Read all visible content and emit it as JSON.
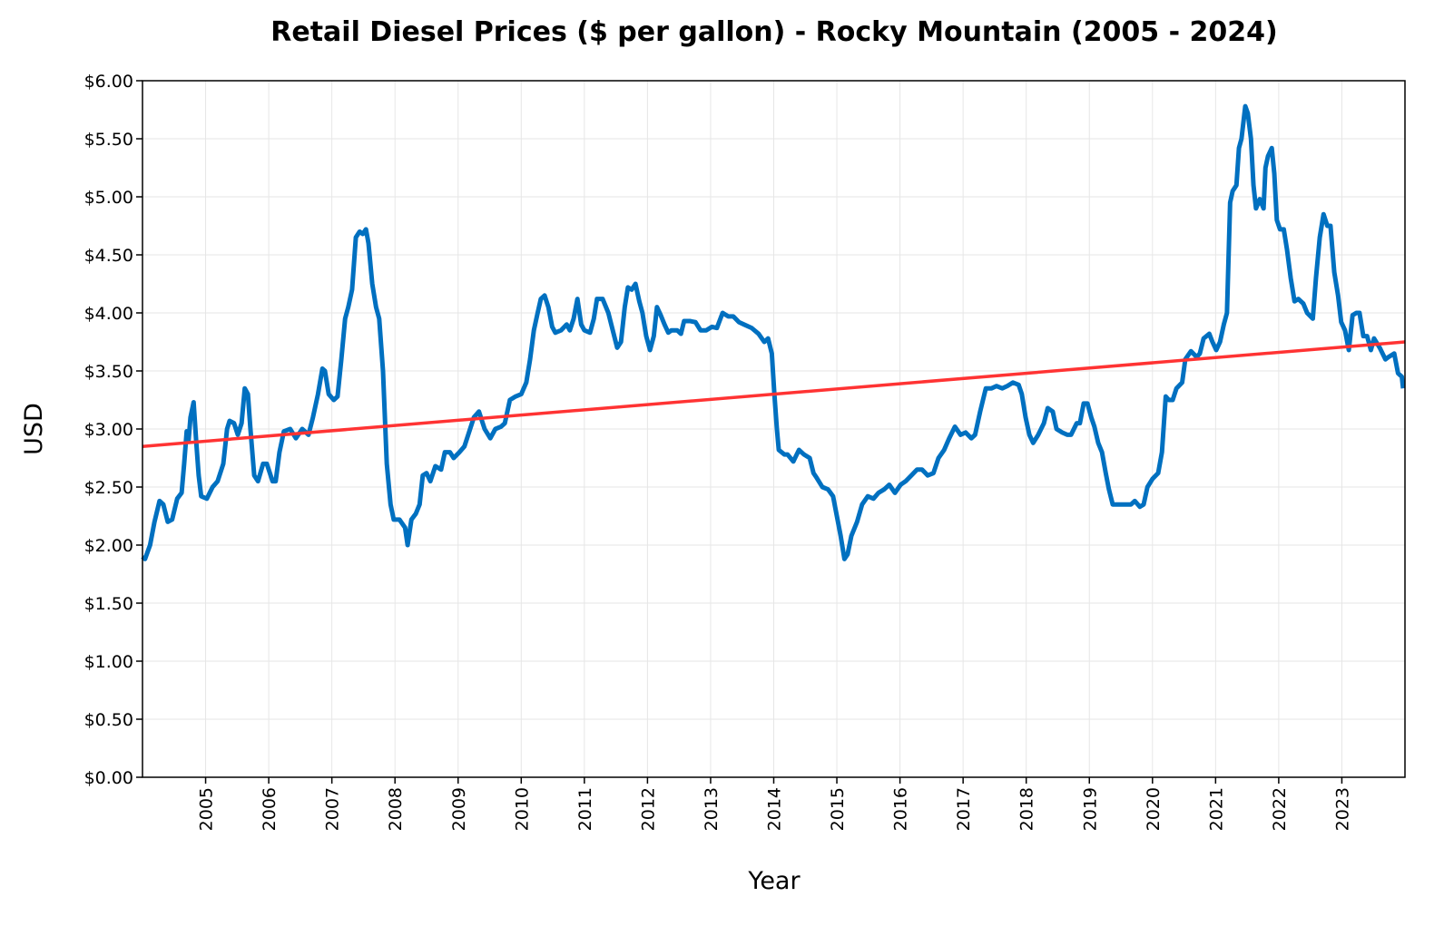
{
  "chart_data": {
    "type": "line",
    "title": "Retail Diesel Prices ($ per gallon) - Rocky Mountain (2005 - 2024)",
    "xlabel": "Year",
    "ylabel": "USD",
    "xlim": [
      2004,
      2024
    ],
    "xticks": [
      2005,
      2006,
      2007,
      2008,
      2009,
      2010,
      2011,
      2012,
      2013,
      2014,
      2015,
      2016,
      2017,
      2018,
      2019,
      2020,
      2021,
      2022,
      2023
    ],
    "ylim": [
      0,
      6
    ],
    "yticks": [
      {
        "value": 0,
        "label": "$0.00"
      },
      {
        "value": 0.5,
        "label": "$0.50"
      },
      {
        "value": 1,
        "label": "$1.00"
      },
      {
        "value": 1.5,
        "label": "$1.50"
      },
      {
        "value": 2,
        "label": "$2.00"
      },
      {
        "value": 2.5,
        "label": "$2.50"
      },
      {
        "value": 3,
        "label": "$3.00"
      },
      {
        "value": 3.5,
        "label": "$3.50"
      },
      {
        "value": 4,
        "label": "$4.00"
      },
      {
        "value": 4.5,
        "label": "$4.50"
      },
      {
        "value": 5,
        "label": "$5.00"
      },
      {
        "value": 5.5,
        "label": "$5.50"
      },
      {
        "value": 6,
        "label": "$6.00"
      }
    ],
    "grid": true,
    "series": [
      {
        "color": "#0070c0",
        "x": [
          2004.0,
          2004.04,
          2004.12,
          2004.19,
          2004.27,
          2004.33,
          2004.4,
          2004.47,
          2004.55,
          2004.62,
          2004.66,
          2004.7,
          2004.73,
          2004.76,
          2004.81,
          2004.85,
          2004.89,
          2004.93,
          2005.02,
          2005.11,
          2005.19,
          2005.28,
          2005.34,
          2005.38,
          2005.45,
          2005.51,
          2005.57,
          2005.62,
          2005.67,
          2005.71,
          2005.77,
          2005.83,
          2005.91,
          2005.97,
          2006.06,
          2006.11,
          2006.17,
          2006.24,
          2006.34,
          2006.43,
          2006.53,
          2006.63,
          2006.7,
          2006.78,
          2006.85,
          2006.89,
          2006.95,
          2007.03,
          2007.09,
          2007.15,
          2007.21,
          2007.26,
          2007.32,
          2007.38,
          2007.44,
          2007.49,
          2007.54,
          2007.58,
          2007.64,
          2007.7,
          2007.75,
          2007.81,
          2007.87,
          2007.93,
          2007.98,
          2008.07,
          2008.16,
          2008.2,
          2008.26,
          2008.33,
          2008.39,
          2008.44,
          2008.5,
          2008.56,
          2008.64,
          2008.73,
          2008.79,
          2008.87,
          2008.93,
          2009.02,
          2009.1,
          2009.16,
          2009.25,
          2009.33,
          2009.42,
          2009.51,
          2009.59,
          2009.68,
          2009.74,
          2009.82,
          2009.91,
          2010.0,
          2010.08,
          2010.14,
          2010.2,
          2010.26,
          2010.31,
          2010.37,
          2010.43,
          2010.49,
          2010.54,
          2010.63,
          2010.72,
          2010.77,
          2010.83,
          2010.89,
          2010.95,
          2011.0,
          2011.09,
          2011.15,
          2011.2,
          2011.29,
          2011.38,
          2011.45,
          2011.52,
          2011.58,
          2011.64,
          2011.69,
          2011.75,
          2011.81,
          2011.87,
          2011.92,
          2011.98,
          2012.04,
          2012.1,
          2012.15,
          2012.21,
          2012.27,
          2012.33,
          2012.38,
          2012.47,
          2012.53,
          2012.58,
          2012.67,
          2012.76,
          2012.84,
          2012.93,
          2013.02,
          2013.1,
          2013.19,
          2013.28,
          2013.36,
          2013.45,
          2013.53,
          2013.65,
          2013.76,
          2013.85,
          2013.91,
          2013.97,
          2014.01,
          2014.05,
          2014.08,
          2014.17,
          2014.22,
          2014.31,
          2014.4,
          2014.48,
          2014.57,
          2014.63,
          2014.68,
          2014.77,
          2014.86,
          2014.94,
          2015.0,
          2015.06,
          2015.12,
          2015.17,
          2015.23,
          2015.32,
          2015.4,
          2015.49,
          2015.58,
          2015.66,
          2015.75,
          2015.83,
          2015.92,
          2016.01,
          2016.09,
          2016.18,
          2016.27,
          2016.35,
          2016.44,
          2016.53,
          2016.61,
          2016.7,
          2016.78,
          2016.87,
          2016.96,
          2017.04,
          2017.13,
          2017.19,
          2017.27,
          2017.36,
          2017.45,
          2017.53,
          2017.62,
          2017.7,
          2017.79,
          2017.88,
          2017.93,
          2017.99,
          2018.05,
          2018.11,
          2018.19,
          2018.28,
          2018.34,
          2018.42,
          2018.48,
          2018.57,
          2018.65,
          2018.71,
          2018.8,
          2018.85,
          2018.91,
          2018.97,
          2019.03,
          2019.08,
          2019.14,
          2019.2,
          2019.26,
          2019.31,
          2019.37,
          2019.46,
          2019.57,
          2019.66,
          2019.72,
          2019.8,
          2019.86,
          2019.92,
          2020.0,
          2020.09,
          2020.15,
          2020.21,
          2020.26,
          2020.32,
          2020.38,
          2020.47,
          2020.52,
          2020.61,
          2020.7,
          2020.75,
          2020.81,
          2020.9,
          2020.95,
          2021.01,
          2021.07,
          2021.13,
          2021.18,
          2021.23,
          2021.27,
          2021.33,
          2021.37,
          2021.41,
          2021.47,
          2021.51,
          2021.56,
          2021.6,
          2021.64,
          2021.7,
          2021.76,
          2021.79,
          2021.83,
          2021.89,
          2021.93,
          2021.97,
          2022.02,
          2022.08,
          2022.13,
          2022.19,
          2022.25,
          2022.31,
          2022.39,
          2022.45,
          2022.54,
          2022.59,
          2022.65,
          2022.71,
          2022.77,
          2022.82,
          2022.88,
          2022.94,
          2022.99,
          2023.05,
          2023.11,
          2023.17,
          2023.23,
          2023.28,
          2023.34,
          2023.4,
          2023.46,
          2023.51,
          2023.6,
          2023.69,
          2023.74,
          2023.83,
          2023.89,
          2023.95,
          2023.97
        ],
        "values": [
          1.9,
          1.88,
          2.0,
          2.2,
          2.38,
          2.35,
          2.2,
          2.22,
          2.4,
          2.45,
          2.7,
          2.98,
          2.9,
          3.1,
          3.23,
          2.9,
          2.6,
          2.42,
          2.4,
          2.5,
          2.55,
          2.7,
          3.0,
          3.07,
          3.05,
          2.95,
          3.05,
          3.35,
          3.3,
          3.0,
          2.6,
          2.55,
          2.7,
          2.7,
          2.55,
          2.55,
          2.8,
          2.98,
          3.0,
          2.92,
          3.0,
          2.95,
          3.1,
          3.3,
          3.52,
          3.5,
          3.3,
          3.25,
          3.28,
          3.6,
          3.95,
          4.05,
          4.2,
          4.65,
          4.7,
          4.68,
          4.72,
          4.6,
          4.25,
          4.05,
          3.95,
          3.5,
          2.7,
          2.35,
          2.22,
          2.22,
          2.15,
          2.0,
          2.22,
          2.27,
          2.35,
          2.6,
          2.62,
          2.55,
          2.68,
          2.65,
          2.8,
          2.8,
          2.75,
          2.8,
          2.85,
          2.95,
          3.1,
          3.15,
          3.0,
          2.92,
          3.0,
          3.02,
          3.05,
          3.25,
          3.28,
          3.3,
          3.4,
          3.6,
          3.85,
          4.0,
          4.12,
          4.15,
          4.05,
          3.88,
          3.83,
          3.85,
          3.9,
          3.85,
          3.95,
          4.12,
          3.9,
          3.85,
          3.83,
          3.95,
          4.12,
          4.12,
          4.0,
          3.85,
          3.7,
          3.75,
          4.05,
          4.22,
          4.2,
          4.25,
          4.1,
          4.0,
          3.8,
          3.68,
          3.8,
          4.05,
          3.98,
          3.9,
          3.83,
          3.85,
          3.85,
          3.82,
          3.93,
          3.93,
          3.92,
          3.85,
          3.85,
          3.88,
          3.87,
          4.0,
          3.97,
          3.97,
          3.92,
          3.9,
          3.87,
          3.82,
          3.75,
          3.78,
          3.65,
          3.3,
          3.0,
          2.82,
          2.78,
          2.78,
          2.72,
          2.82,
          2.78,
          2.75,
          2.62,
          2.58,
          2.5,
          2.48,
          2.42,
          2.25,
          2.08,
          1.88,
          1.92,
          2.08,
          2.2,
          2.35,
          2.42,
          2.4,
          2.45,
          2.48,
          2.52,
          2.45,
          2.52,
          2.55,
          2.6,
          2.65,
          2.65,
          2.6,
          2.62,
          2.75,
          2.82,
          2.92,
          3.02,
          2.95,
          2.97,
          2.92,
          2.95,
          3.15,
          3.35,
          3.35,
          3.37,
          3.35,
          3.37,
          3.4,
          3.38,
          3.3,
          3.1,
          2.95,
          2.88,
          2.95,
          3.05,
          3.18,
          3.15,
          3.0,
          2.97,
          2.95,
          2.95,
          3.05,
          3.05,
          3.22,
          3.22,
          3.1,
          3.02,
          2.88,
          2.8,
          2.62,
          2.48,
          2.35,
          2.35,
          2.35,
          2.35,
          2.38,
          2.33,
          2.35,
          2.5,
          2.57,
          2.62,
          2.8,
          3.28,
          3.25,
          3.25,
          3.35,
          3.4,
          3.6,
          3.67,
          3.62,
          3.65,
          3.78,
          3.82,
          3.75,
          3.68,
          3.75,
          3.9,
          4.0,
          4.95,
          5.05,
          5.1,
          5.42,
          5.5,
          5.78,
          5.72,
          5.5,
          5.1,
          4.9,
          4.98,
          4.9,
          5.25,
          5.35,
          5.42,
          5.2,
          4.8,
          4.72,
          4.72,
          4.55,
          4.3,
          4.1,
          4.12,
          4.08,
          4.0,
          3.95,
          4.3,
          4.65,
          4.85,
          4.75,
          4.75,
          4.35,
          4.15,
          3.92,
          3.85,
          3.68,
          3.98,
          4.0,
          4.0,
          3.8,
          3.8,
          3.68,
          3.78,
          3.7,
          3.6,
          3.62,
          3.65,
          3.48,
          3.45,
          3.35
        ]
      },
      {
        "color": "#ff3333",
        "x": [
          2004,
          2024
        ],
        "values": [
          2.85,
          3.75
        ]
      }
    ]
  }
}
